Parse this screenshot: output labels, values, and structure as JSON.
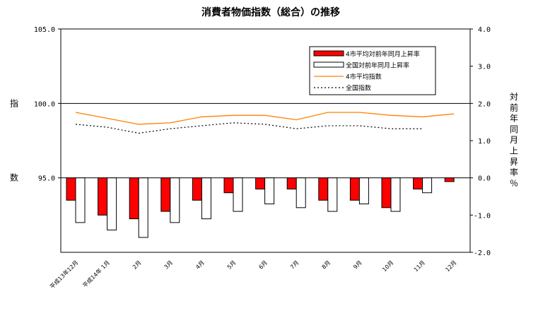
{
  "chart_data": {
    "type": "bar",
    "title": "消費者物価指数（総合）の推移",
    "categories": [
      "平成13年12月",
      "平成14年 1月",
      "2月",
      "3月",
      "4月",
      "5月",
      "6月",
      "7月",
      "8月",
      "9月",
      "10月",
      "11月",
      "12月"
    ],
    "left_axis": {
      "label": "指数",
      "ylim": [
        90.0,
        105.0
      ],
      "ticks": [
        "105.0",
        "100.0",
        "95.0"
      ],
      "tick_values": [
        105.0,
        100.0,
        95.0
      ]
    },
    "right_axis": {
      "label": "対前年同月上昇率％",
      "ylim": [
        -2.0,
        4.0
      ],
      "ticks": [
        "4.0",
        "3.0",
        "2.0",
        "1.0",
        "0.0",
        "-1.0",
        "-2.0"
      ],
      "tick_values": [
        4.0,
        3.0,
        2.0,
        1.0,
        0.0,
        -1.0,
        -2.0
      ]
    },
    "series": [
      {
        "name": "4市平均対前年同月上昇率",
        "kind": "bar",
        "axis": "right",
        "color": "#ff0000",
        "values": [
          -0.6,
          -1.0,
          -1.1,
          -0.9,
          -0.6,
          -0.4,
          -0.3,
          -0.3,
          -0.6,
          -0.6,
          -0.8,
          -0.3,
          -0.1
        ]
      },
      {
        "name": "全国対前年同月上昇率",
        "kind": "bar",
        "axis": "right",
        "color": "#ffffff",
        "values": [
          -1.2,
          -1.4,
          -1.6,
          -1.2,
          -1.1,
          -0.9,
          -0.7,
          -0.8,
          -0.9,
          -0.7,
          -0.9,
          -0.4,
          null
        ]
      },
      {
        "name": "4市平均指数",
        "kind": "line",
        "axis": "left",
        "color": "#ff8000",
        "values": [
          99.4,
          99.0,
          98.6,
          98.7,
          99.1,
          99.2,
          99.2,
          98.9,
          99.4,
          99.4,
          99.2,
          99.1,
          99.3
        ]
      },
      {
        "name": "全国指数",
        "kind": "line",
        "axis": "left",
        "color": "#000000",
        "dash": true,
        "values": [
          98.6,
          98.4,
          98.0,
          98.3,
          98.5,
          98.7,
          98.6,
          98.3,
          98.5,
          98.5,
          98.3,
          98.3,
          null
        ]
      }
    ],
    "legend_position": "top-right",
    "grid": false
  }
}
